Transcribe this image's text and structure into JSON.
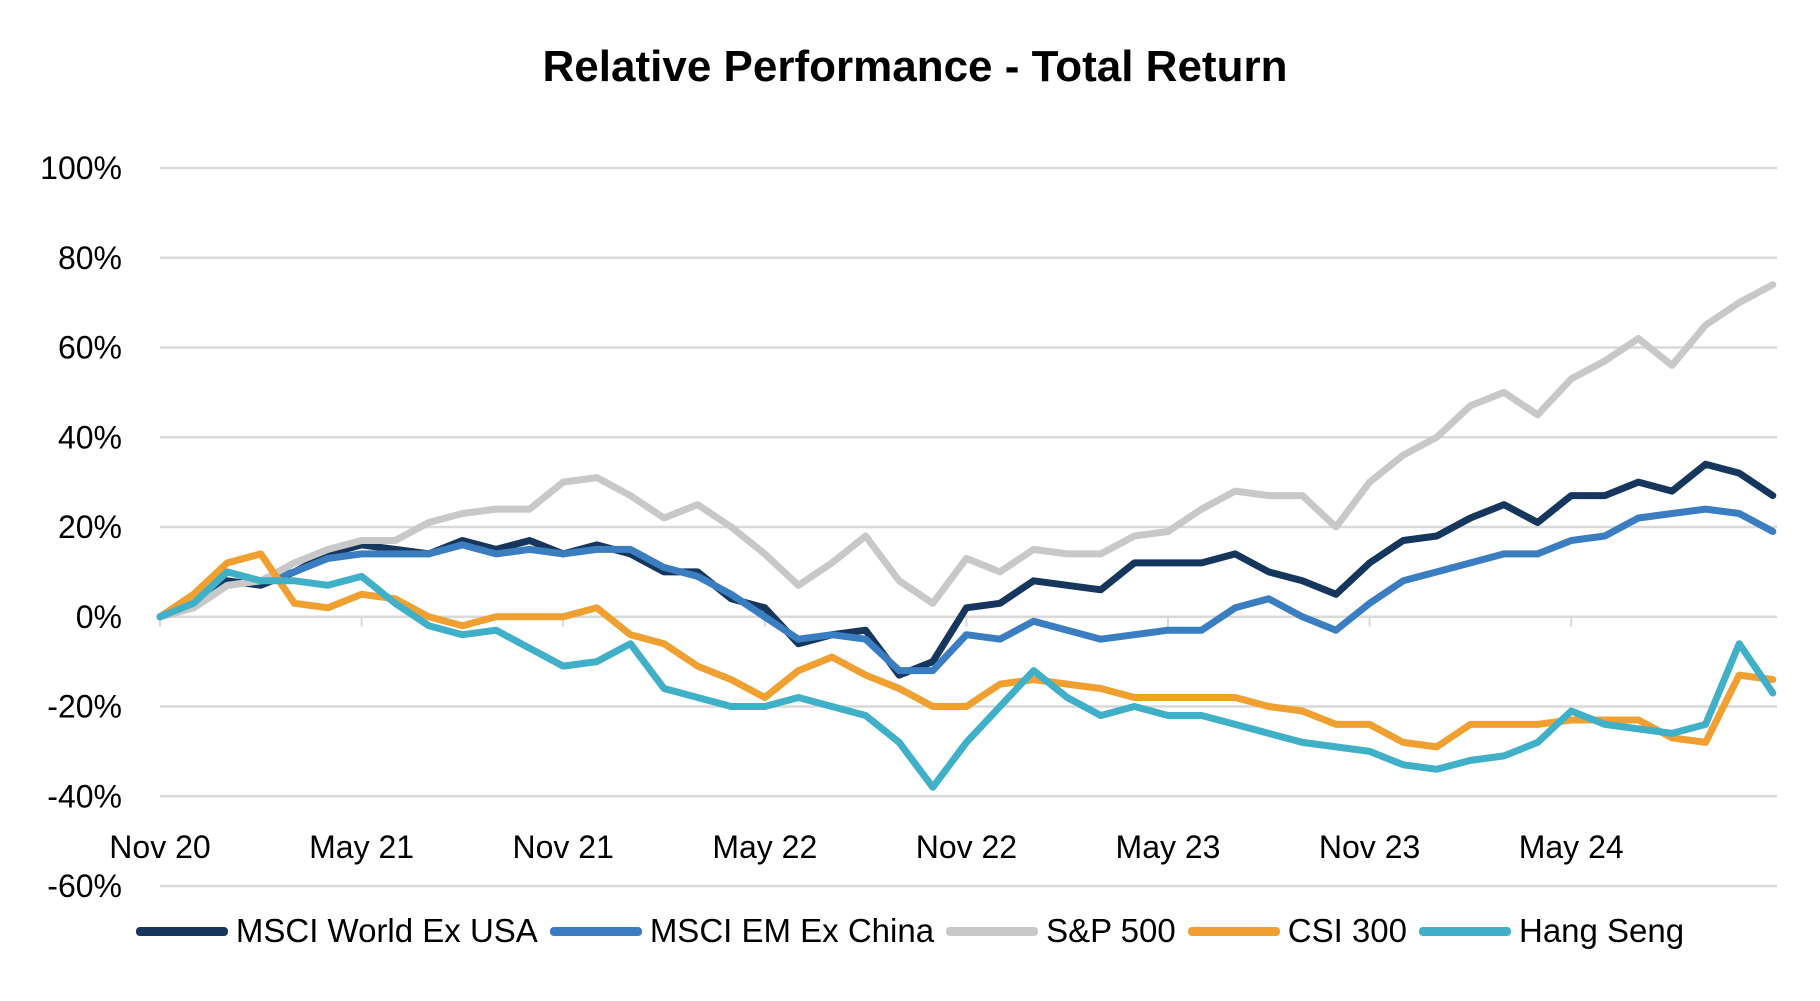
{
  "chart_data": {
    "type": "line",
    "title": "Relative Performance - Total Return",
    "xlabel": "",
    "ylabel": "",
    "ylim": [
      -0.6,
      1.0
    ],
    "yticks": [
      "100%",
      "80%",
      "60%",
      "40%",
      "20%",
      "0%",
      "-20%",
      "-40%",
      "-60%"
    ],
    "ytick_values": [
      1.0,
      0.8,
      0.6,
      0.4,
      0.2,
      0,
      -0.2,
      -0.4,
      -0.6
    ],
    "xticks": [
      "Nov 20",
      "May 21",
      "Nov 21",
      "May 22",
      "Nov 22",
      "May 23",
      "Nov 23",
      "May 24"
    ],
    "grid": true,
    "legend_position": "bottom",
    "x": [
      "2020-11",
      "2020-12",
      "2021-01",
      "2021-02",
      "2021-03",
      "2021-04",
      "2021-05",
      "2021-06",
      "2021-07",
      "2021-08",
      "2021-09",
      "2021-10",
      "2021-11",
      "2021-12",
      "2022-01",
      "2022-02",
      "2022-03",
      "2022-04",
      "2022-05",
      "2022-06",
      "2022-07",
      "2022-08",
      "2022-09",
      "2022-10",
      "2022-11",
      "2022-12",
      "2023-01",
      "2023-02",
      "2023-03",
      "2023-04",
      "2023-05",
      "2023-06",
      "2023-07",
      "2023-08",
      "2023-09",
      "2023-10",
      "2023-11",
      "2023-12",
      "2024-01",
      "2024-02",
      "2024-03",
      "2024-04",
      "2024-05",
      "2024-06",
      "2024-07",
      "2024-08",
      "2024-09",
      "2024-10",
      "2024-11"
    ],
    "series": [
      {
        "name": "MSCI World Ex USA",
        "color": "#17365d",
        "values": [
          0,
          0.03,
          0.08,
          0.07,
          0.1,
          0.14,
          0.16,
          0.15,
          0.14,
          0.17,
          0.15,
          0.17,
          0.14,
          0.16,
          0.14,
          0.1,
          0.1,
          0.04,
          0.02,
          -0.06,
          -0.04,
          -0.03,
          -0.13,
          -0.1,
          0.02,
          0.03,
          0.08,
          0.07,
          0.06,
          0.12,
          0.12,
          0.12,
          0.14,
          0.1,
          0.08,
          0.05,
          0.12,
          0.17,
          0.18,
          0.22,
          0.25,
          0.21,
          0.27,
          0.27,
          0.3,
          0.28,
          0.34,
          0.32,
          0.27
        ]
      },
      {
        "name": "MSCI EM Ex China",
        "color": "#3a7dc0",
        "values": [
          0,
          0.02,
          0.07,
          0.08,
          0.1,
          0.13,
          0.14,
          0.14,
          0.14,
          0.16,
          0.14,
          0.15,
          0.14,
          0.15,
          0.15,
          0.11,
          0.09,
          0.05,
          0,
          -0.05,
          -0.04,
          -0.05,
          -0.12,
          -0.12,
          -0.04,
          -0.05,
          -0.01,
          -0.03,
          -0.05,
          -0.04,
          -0.03,
          -0.03,
          0.02,
          0.04,
          0,
          -0.03,
          0.03,
          0.08,
          0.1,
          0.12,
          0.14,
          0.14,
          0.17,
          0.18,
          0.22,
          0.23,
          0.24,
          0.23,
          0.19
        ]
      },
      {
        "name": "S&P 500",
        "color": "#c8c8c8",
        "values": [
          0,
          0.02,
          0.07,
          0.08,
          0.12,
          0.15,
          0.17,
          0.17,
          0.21,
          0.23,
          0.24,
          0.24,
          0.3,
          0.31,
          0.27,
          0.22,
          0.25,
          0.2,
          0.14,
          0.07,
          0.12,
          0.18,
          0.08,
          0.03,
          0.13,
          0.1,
          0.15,
          0.14,
          0.14,
          0.18,
          0.19,
          0.24,
          0.28,
          0.27,
          0.27,
          0.2,
          0.3,
          0.36,
          0.4,
          0.47,
          0.5,
          0.45,
          0.53,
          0.57,
          0.62,
          0.56,
          0.65,
          0.7,
          0.74
        ]
      },
      {
        "name": "CSI 300",
        "color": "#f0a030",
        "values": [
          0,
          0.05,
          0.12,
          0.14,
          0.03,
          0.02,
          0.05,
          0.04,
          0,
          -0.02,
          0,
          0,
          0,
          0.02,
          -0.04,
          -0.06,
          -0.11,
          -0.14,
          -0.18,
          -0.12,
          -0.09,
          -0.13,
          -0.16,
          -0.2,
          -0.2,
          -0.15,
          -0.14,
          -0.15,
          -0.16,
          -0.18,
          -0.18,
          -0.18,
          -0.18,
          -0.2,
          -0.21,
          -0.24,
          -0.24,
          -0.28,
          -0.29,
          -0.24,
          -0.24,
          -0.24,
          -0.23,
          -0.23,
          -0.23,
          -0.27,
          -0.28,
          -0.13,
          -0.14
        ]
      },
      {
        "name": "Hang Seng",
        "color": "#40b0c8",
        "values": [
          0,
          0.03,
          0.1,
          0.08,
          0.08,
          0.07,
          0.09,
          0.03,
          -0.02,
          -0.04,
          -0.03,
          -0.07,
          -0.11,
          -0.1,
          -0.06,
          -0.16,
          -0.18,
          -0.2,
          -0.2,
          -0.18,
          -0.2,
          -0.22,
          -0.28,
          -0.38,
          -0.28,
          -0.2,
          -0.12,
          -0.18,
          -0.22,
          -0.2,
          -0.22,
          -0.22,
          -0.24,
          -0.26,
          -0.28,
          -0.29,
          -0.3,
          -0.33,
          -0.34,
          -0.32,
          -0.31,
          -0.28,
          -0.21,
          -0.24,
          -0.25,
          -0.26,
          -0.24,
          -0.06,
          -0.17
        ]
      }
    ]
  }
}
